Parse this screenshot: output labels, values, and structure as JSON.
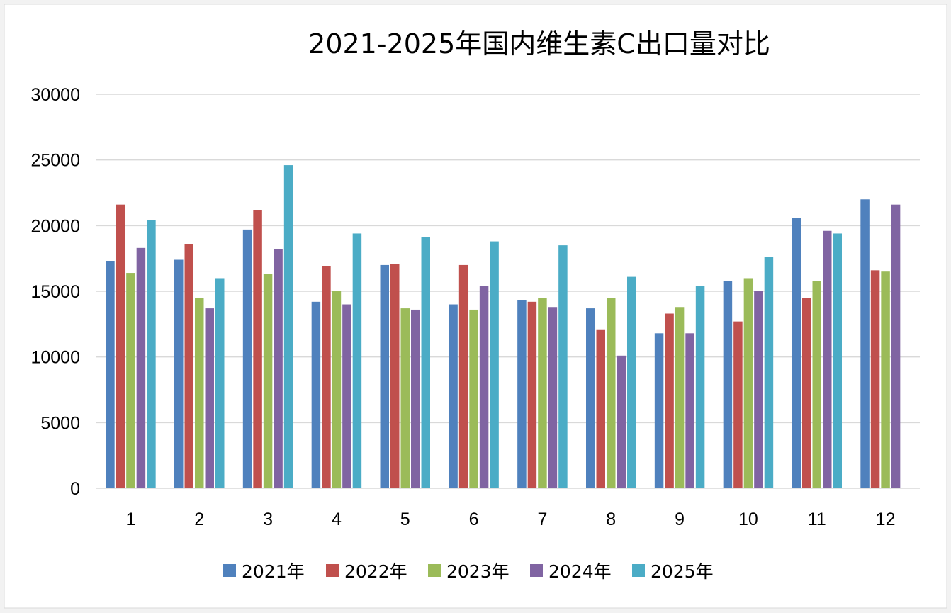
{
  "chart_data": {
    "type": "bar",
    "title": "2021-2025年国内维生素C出口量对比",
    "xlabel": "",
    "ylabel": "",
    "categories": [
      "1",
      "2",
      "3",
      "4",
      "5",
      "6",
      "7",
      "8",
      "9",
      "10",
      "11",
      "12"
    ],
    "ylim": [
      0,
      30000
    ],
    "yticks": [
      "0",
      "5000",
      "10000",
      "15000",
      "20000",
      "25000",
      "30000"
    ],
    "grid": true,
    "legend_position": "bottom",
    "series": [
      {
        "name": "2021年",
        "color": "#4f81bd",
        "values": [
          17300,
          17400,
          19700,
          14200,
          17000,
          14000,
          14300,
          13700,
          11800,
          15800,
          20600,
          22000
        ]
      },
      {
        "name": "2022年",
        "color": "#c0504d",
        "values": [
          21600,
          18600,
          21200,
          16900,
          17100,
          17000,
          14200,
          12100,
          13300,
          12700,
          14500,
          16600
        ]
      },
      {
        "name": "2023年",
        "color": "#9bbb59",
        "values": [
          16400,
          14500,
          16300,
          15000,
          13700,
          13600,
          14500,
          14500,
          13800,
          16000,
          15800,
          16500
        ]
      },
      {
        "name": "2024年",
        "color": "#8064a2",
        "values": [
          18300,
          13700,
          18200,
          14000,
          13600,
          15400,
          13800,
          10100,
          11800,
          15000,
          19600,
          21600
        ]
      },
      {
        "name": "2025年",
        "color": "#4bacc6",
        "values": [
          20400,
          16000,
          24600,
          19400,
          19100,
          18800,
          18500,
          16100,
          15400,
          17600,
          19400,
          null
        ]
      }
    ]
  }
}
